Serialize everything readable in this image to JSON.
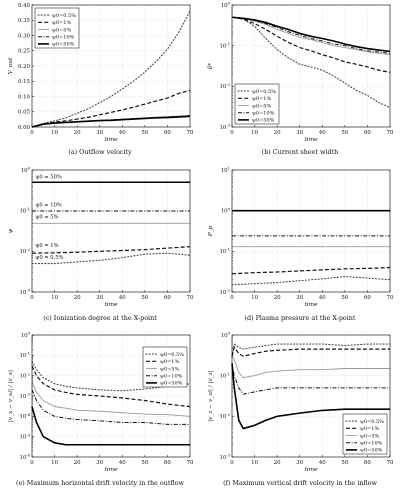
{
  "captions": [
    "(a) Outflow velocity",
    "(b) Current sheet width",
    "(c) Ionization degree at the X-point",
    "(d) Plasma pressure at the X-point",
    "(e) Maximum horizontal drift velocity in the outflow",
    "(f) Maximum vertical drift velocity in the inflow"
  ],
  "chart_data": [
    {
      "id": "a",
      "type": "line",
      "xlabel": "time",
      "ylabel": "V_out",
      "xlim": [
        0,
        70
      ],
      "ylim": [
        0,
        0.4
      ],
      "yscale": "linear",
      "xticks": [
        "0",
        "10",
        "20",
        "30",
        "40",
        "50",
        "60",
        "70"
      ],
      "yticks": [
        "0.00",
        "0.05",
        "0.10",
        "0.15",
        "0.20",
        "0.25",
        "0.30",
        "0.35",
        "0.40"
      ],
      "grid": true,
      "legend_position": "top-left",
      "x": [
        0,
        5,
        10,
        15,
        20,
        25,
        30,
        35,
        40,
        45,
        50,
        55,
        60,
        65,
        70
      ],
      "series": [
        {
          "name": "ψ0=0.5%",
          "style": "dotted",
          "values": [
            0,
            0.012,
            0.02,
            0.03,
            0.045,
            0.06,
            0.08,
            0.1,
            0.125,
            0.15,
            0.18,
            0.215,
            0.255,
            0.31,
            0.38
          ]
        },
        {
          "name": "ψ0=1%",
          "style": "dashed",
          "values": [
            0,
            0.01,
            0.016,
            0.02,
            0.026,
            0.032,
            0.04,
            0.048,
            0.056,
            0.065,
            0.075,
            0.085,
            0.095,
            0.11,
            0.12
          ]
        },
        {
          "name": "ψ0=5%",
          "style": "gray",
          "values": [
            0,
            0.009,
            0.014,
            0.016,
            0.018,
            0.02,
            0.022,
            0.024,
            0.026,
            0.028,
            0.03,
            0.032,
            0.034,
            0.036,
            0.038
          ]
        },
        {
          "name": "ψ0=10%",
          "style": "dashdot",
          "values": [
            0,
            0.009,
            0.013,
            0.015,
            0.017,
            0.019,
            0.021,
            0.023,
            0.025,
            0.027,
            0.029,
            0.031,
            0.033,
            0.035,
            0.037
          ]
        },
        {
          "name": "ψ0=50%",
          "style": "solid",
          "values": [
            0,
            0.009,
            0.013,
            0.015,
            0.017,
            0.019,
            0.021,
            0.022,
            0.024,
            0.026,
            0.028,
            0.03,
            0.031,
            0.033,
            0.035
          ]
        }
      ]
    },
    {
      "id": "b",
      "type": "line",
      "xlabel": "time",
      "ylabel": "δ*",
      "xlim": [
        0,
        70
      ],
      "ylim": [
        0.001,
        1
      ],
      "yscale": "log",
      "xticks": [
        "0",
        "10",
        "20",
        "30",
        "40",
        "50",
        "60",
        "70"
      ],
      "yticks": [
        "10^-3",
        "10^-2",
        "10^-1",
        "10^0"
      ],
      "grid": true,
      "legend_position": "bottom-left",
      "x": [
        0,
        5,
        10,
        15,
        20,
        25,
        30,
        35,
        40,
        45,
        50,
        55,
        60,
        65,
        70
      ],
      "series": [
        {
          "name": "ψ0=0.5%",
          "style": "dotted",
          "values": [
            0.5,
            0.45,
            0.3,
            0.15,
            0.08,
            0.05,
            0.035,
            0.03,
            0.025,
            0.018,
            0.012,
            0.008,
            0.006,
            0.004,
            0.003
          ]
        },
        {
          "name": "ψ0=1%",
          "style": "dashed",
          "values": [
            0.5,
            0.45,
            0.35,
            0.25,
            0.17,
            0.12,
            0.09,
            0.075,
            0.06,
            0.05,
            0.04,
            0.035,
            0.03,
            0.025,
            0.022
          ]
        },
        {
          "name": "ψ0=5%",
          "style": "gray",
          "values": [
            0.5,
            0.47,
            0.4,
            0.33,
            0.25,
            0.2,
            0.16,
            0.14,
            0.12,
            0.1,
            0.09,
            0.08,
            0.07,
            0.065,
            0.06
          ]
        },
        {
          "name": "ψ0=10%",
          "style": "dashdot",
          "values": [
            0.5,
            0.47,
            0.42,
            0.35,
            0.28,
            0.22,
            0.18,
            0.15,
            0.13,
            0.11,
            0.1,
            0.085,
            0.075,
            0.07,
            0.065
          ]
        },
        {
          "name": "ψ0=50%",
          "style": "solid",
          "values": [
            0.5,
            0.47,
            0.43,
            0.37,
            0.3,
            0.25,
            0.2,
            0.17,
            0.15,
            0.13,
            0.11,
            0.095,
            0.085,
            0.078,
            0.072
          ]
        }
      ]
    },
    {
      "id": "c",
      "type": "line",
      "xlabel": "time",
      "ylabel": "ψ",
      "xlim": [
        0,
        70
      ],
      "ylim": [
        0.001,
        1
      ],
      "yscale": "log",
      "xticks": [
        "0",
        "10",
        "20",
        "30",
        "40",
        "50",
        "60",
        "70"
      ],
      "yticks": [
        "10^-3",
        "10^-2",
        "10^-1",
        "10^0"
      ],
      "grid": true,
      "legend_position": "none",
      "annotations": [
        {
          "text": "ψ0 = 50%",
          "x": 1,
          "y": 0.62
        },
        {
          "text": "ψ0 = 10%",
          "x": 1,
          "y": 0.128
        },
        {
          "text": "ψ0 = 5%",
          "x": 1,
          "y": 0.064
        },
        {
          "text": "ψ0 = 1%",
          "x": 1,
          "y": 0.0128
        },
        {
          "text": "ψ0 = 0.5%",
          "x": 1,
          "y": 0.0064
        }
      ],
      "x": [
        0,
        10,
        20,
        30,
        40,
        50,
        60,
        70
      ],
      "series": [
        {
          "name": "ψ0=0.5%",
          "style": "dotted",
          "values": [
            0.005,
            0.005,
            0.0055,
            0.006,
            0.007,
            0.0085,
            0.009,
            0.008
          ]
        },
        {
          "name": "ψ0=1%",
          "style": "dashed",
          "values": [
            0.009,
            0.0092,
            0.0095,
            0.01,
            0.0105,
            0.011,
            0.012,
            0.013
          ]
        },
        {
          "name": "ψ0=5%",
          "style": "gray",
          "values": [
            0.049,
            0.049,
            0.049,
            0.049,
            0.049,
            0.049,
            0.049,
            0.049
          ]
        },
        {
          "name": "ψ0=10%",
          "style": "dashdot",
          "values": [
            0.098,
            0.098,
            0.098,
            0.098,
            0.098,
            0.098,
            0.098,
            0.098
          ]
        },
        {
          "name": "ψ0=50%",
          "style": "solid",
          "values": [
            0.5,
            0.5,
            0.5,
            0.5,
            0.5,
            0.5,
            0.5,
            0.5
          ]
        }
      ]
    },
    {
      "id": "d",
      "type": "line",
      "xlabel": "time",
      "ylabel": "P_p",
      "xlim": [
        0,
        70
      ],
      "ylim": [
        0.01,
        10
      ],
      "yscale": "log",
      "xticks": [
        "0",
        "10",
        "20",
        "30",
        "40",
        "50",
        "60",
        "70"
      ],
      "yticks": [
        "10^-2",
        "10^-1",
        "10^0",
        "10^1"
      ],
      "grid": true,
      "legend_position": "none",
      "x": [
        0,
        10,
        20,
        30,
        40,
        50,
        60,
        70
      ],
      "series": [
        {
          "name": "ψ0=0.5%",
          "style": "dotted",
          "values": [
            0.015,
            0.016,
            0.017,
            0.019,
            0.021,
            0.024,
            0.022,
            0.02
          ]
        },
        {
          "name": "ψ0=1%",
          "style": "dashed",
          "values": [
            0.028,
            0.03,
            0.031,
            0.033,
            0.035,
            0.037,
            0.038,
            0.04
          ]
        },
        {
          "name": "ψ0=5%",
          "style": "gray",
          "values": [
            0.13,
            0.13,
            0.13,
            0.13,
            0.13,
            0.13,
            0.13,
            0.13
          ]
        },
        {
          "name": "ψ0=10%",
          "style": "dashdot",
          "values": [
            0.24,
            0.24,
            0.24,
            0.24,
            0.24,
            0.24,
            0.24,
            0.24
          ]
        },
        {
          "name": "ψ0=50%",
          "style": "solid",
          "values": [
            1,
            1,
            1,
            1,
            1,
            1,
            1,
            1
          ]
        }
      ]
    },
    {
      "id": "e",
      "type": "line",
      "xlabel": "time",
      "ylabel": "|v_x − v_xi| / |v_x|",
      "xlim": [
        0,
        70
      ],
      "ylim": [
        1e-06,
        1
      ],
      "yscale": "log",
      "xticks": [
        "0",
        "10",
        "20",
        "30",
        "40",
        "50",
        "60",
        "70"
      ],
      "yticks": [
        "10^-6",
        "10^-5",
        "10^-4",
        "10^-3",
        "10^-2",
        "10^-1",
        "10^0"
      ],
      "grid": true,
      "legend_position": "top-right",
      "x": [
        0,
        2,
        5,
        10,
        15,
        20,
        30,
        40,
        50,
        60,
        70
      ],
      "series": [
        {
          "name": "ψ0=0.5%",
          "style": "dotted",
          "values": [
            0.05,
            0.02,
            0.008,
            0.004,
            0.003,
            0.0025,
            0.002,
            0.0018,
            0.0022,
            0.003,
            0.004
          ]
        },
        {
          "name": "ψ0=1%",
          "style": "dashed",
          "values": [
            0.03,
            0.01,
            0.004,
            0.002,
            0.0015,
            0.0012,
            0.001,
            0.0008,
            0.0006,
            0.0004,
            0.0003
          ]
        },
        {
          "name": "ψ0=5%",
          "style": "gray",
          "values": [
            0.005,
            0.0015,
            0.0006,
            0.0003,
            0.00025,
            0.0002,
            0.00018,
            0.00015,
            0.00013,
            0.00012,
            0.0001
          ]
        },
        {
          "name": "ψ0=10%",
          "style": "dashdot",
          "values": [
            0.002,
            0.0006,
            0.0002,
            0.0001,
            8e-05,
            7e-05,
            6e-05,
            5e-05,
            5e-05,
            4e-05,
            4e-05
          ]
        },
        {
          "name": "ψ0=50%",
          "style": "solid",
          "values": [
            0.0003,
            5e-05,
            1e-05,
            5e-06,
            4e-06,
            4e-06,
            4e-06,
            4e-06,
            4e-06,
            4e-06,
            4e-06
          ]
        }
      ]
    },
    {
      "id": "f",
      "type": "line",
      "xlabel": "time",
      "ylabel": "|v_z − v_zi| / |v_z|",
      "xlim": [
        0,
        70
      ],
      "ylim": [
        0.001,
        1
      ],
      "yscale": "log",
      "xticks": [
        "0",
        "10",
        "20",
        "30",
        "40",
        "50",
        "60",
        "70"
      ],
      "yticks": [
        "10^-3",
        "10^-2",
        "10^-1",
        "10^0"
      ],
      "grid": true,
      "legend_position": "bottom-right",
      "x": [
        0,
        1,
        3,
        5,
        10,
        15,
        20,
        30,
        40,
        50,
        60,
        70
      ],
      "series": [
        {
          "name": "ψ0=0.5%",
          "style": "dotted",
          "values": [
            0.3,
            0.6,
            0.5,
            0.45,
            0.5,
            0.55,
            0.6,
            0.6,
            0.6,
            0.55,
            0.6,
            0.6
          ]
        },
        {
          "name": "ψ0=1%",
          "style": "dashed",
          "values": [
            0.3,
            0.5,
            0.35,
            0.3,
            0.35,
            0.4,
            0.42,
            0.45,
            0.45,
            0.45,
            0.45,
            0.45
          ]
        },
        {
          "name": "ψ0=5%",
          "style": "gray",
          "values": [
            0.3,
            0.25,
            0.12,
            0.09,
            0.1,
            0.12,
            0.13,
            0.14,
            0.14,
            0.15,
            0.15,
            0.15
          ]
        },
        {
          "name": "ψ0=10%",
          "style": "dashdot",
          "values": [
            0.2,
            0.1,
            0.05,
            0.035,
            0.04,
            0.045,
            0.05,
            0.05,
            0.05,
            0.05,
            0.05,
            0.05
          ]
        },
        {
          "name": "ψ0=50%",
          "style": "solid",
          "values": [
            0.2,
            0.05,
            0.008,
            0.005,
            0.006,
            0.008,
            0.01,
            0.012,
            0.014,
            0.015,
            0.015,
            0.015
          ]
        }
      ]
    }
  ]
}
